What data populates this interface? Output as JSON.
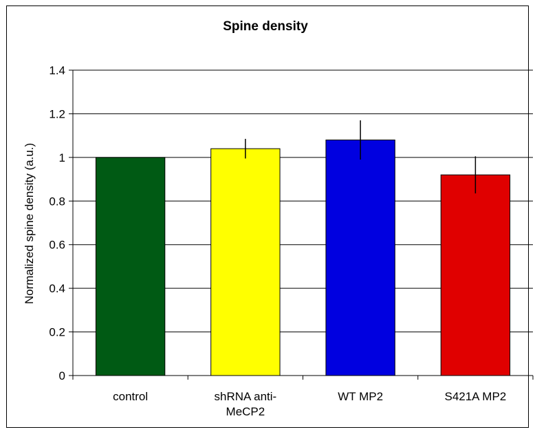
{
  "chart_data": {
    "type": "bar",
    "title": "Spine density",
    "xlabel": "",
    "ylabel": "Normalized spine density (a.u.)",
    "ylim": [
      0,
      1.4
    ],
    "yticks": [
      "0",
      "0.2",
      "0.4",
      "0.6",
      "0.8",
      "1",
      "1.2",
      "1.4"
    ],
    "grid": true,
    "categories": [
      [
        "control"
      ],
      [
        "shRNA anti-",
        "MeCP2"
      ],
      [
        "WT MP2"
      ],
      [
        "S421A MP2"
      ]
    ],
    "values": [
      1.0,
      1.04,
      1.08,
      0.92
    ],
    "errors": [
      0.0,
      0.045,
      0.09,
      0.085
    ],
    "colors": [
      "#005a14",
      "#ffff00",
      "#0000e0",
      "#e00000"
    ]
  }
}
